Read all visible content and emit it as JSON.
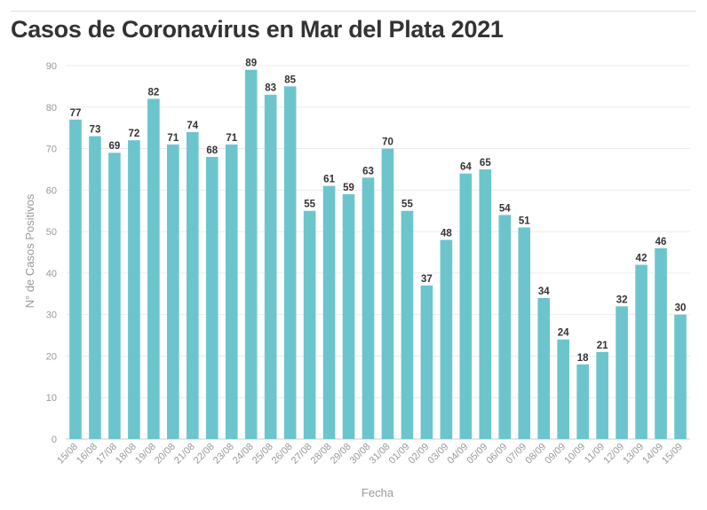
{
  "title": "Casos de Coronavirus en Mar del Plata 2021",
  "colors": {
    "bar": "#6cc5cc"
  },
  "chart_data": {
    "type": "bar",
    "title": "Casos de Coronavirus en Mar del Plata 2021",
    "xlabel": "Fecha",
    "ylabel": "N° de Casos Positivos",
    "ylim": [
      0,
      90
    ],
    "yticks": [
      0,
      10,
      20,
      30,
      40,
      50,
      60,
      70,
      80,
      90
    ],
    "grid": true,
    "categories": [
      "15/08",
      "16/08",
      "17/08",
      "18/08",
      "19/08",
      "20/08",
      "21/08",
      "22/08",
      "23/08",
      "24/08",
      "25/08",
      "26/08",
      "27/08",
      "28/08",
      "29/08",
      "30/08",
      "31/08",
      "01/09",
      "02/09",
      "03/09",
      "04/09",
      "05/09",
      "06/09",
      "07/09",
      "08/09",
      "09/09",
      "10/09",
      "11/09",
      "12/09",
      "13/09",
      "14/09",
      "15/09"
    ],
    "values": [
      77,
      73,
      69,
      72,
      82,
      71,
      74,
      68,
      71,
      89,
      83,
      85,
      55,
      61,
      59,
      63,
      70,
      55,
      37,
      48,
      64,
      65,
      54,
      51,
      34,
      24,
      18,
      21,
      32,
      42,
      46,
      30
    ]
  }
}
